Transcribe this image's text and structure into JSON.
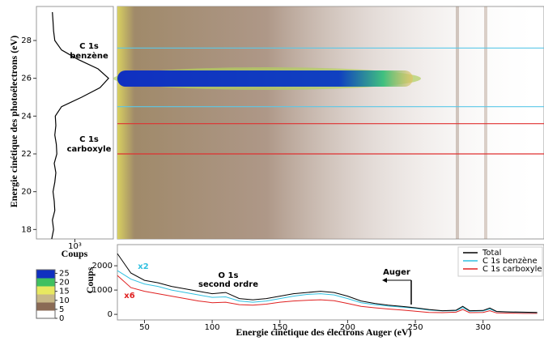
{
  "chart_data": [
    {
      "type": "profile",
      "ylabel": "Energie cinétique des photoélectrons (eV)",
      "xlabel": "Coups",
      "y": [
        17.5,
        18,
        18.5,
        19,
        19.5,
        20,
        20.5,
        21,
        21.5,
        22,
        22.5,
        23,
        23.5,
        24,
        24.5,
        25,
        25.5,
        26,
        26.5,
        27,
        27.5,
        28,
        28.5,
        29,
        29.5
      ],
      "values": [
        250,
        280,
        260,
        300,
        290,
        270,
        300,
        320,
        290,
        340,
        330,
        300,
        320,
        310,
        450,
        1500,
        4500,
        7500,
        4000,
        1200,
        450,
        300,
        280,
        270,
        260
      ],
      "color": "#000000",
      "xscale": "log",
      "xlim": [
        100,
        10000
      ],
      "xticks": [
        {
          "value": 1000,
          "label": "10³"
        }
      ],
      "ylim": [
        17.5,
        29.8
      ],
      "yticks": [
        18,
        20,
        22,
        24,
        26,
        28
      ],
      "annotations": [
        [
          "C 1s",
          "benzène"
        ],
        [
          "C 1s",
          "carboxyle"
        ]
      ]
    },
    {
      "type": "heatmap",
      "xlim": [
        30,
        345
      ],
      "ylim": [
        17.5,
        29.8
      ],
      "hlines": [
        {
          "value": 27.6,
          "color": "#5bc8e8"
        },
        {
          "value": 24.5,
          "color": "#5bc8e8"
        },
        {
          "value": 23.6,
          "color": "#e03030"
        },
        {
          "value": 22.0,
          "color": "#e03030"
        }
      ]
    },
    {
      "type": "colorbar",
      "ylim": [
        0,
        27
      ],
      "yticks": [
        0,
        5,
        10,
        15,
        20,
        25
      ],
      "colors": [
        "#ffffff",
        "#8a6a55",
        "#c8b888",
        "#e8e860",
        "#40c060",
        "#1030c0"
      ]
    },
    {
      "type": "line",
      "xlabel": "Energie cinétique des électrons Auger (eV)",
      "ylabel": "Coups",
      "x": [
        30,
        40,
        50,
        60,
        70,
        80,
        90,
        100,
        110,
        120,
        130,
        140,
        150,
        160,
        170,
        180,
        190,
        200,
        210,
        220,
        230,
        240,
        250,
        260,
        270,
        280,
        285,
        290,
        300,
        305,
        310,
        320,
        330,
        340
      ],
      "series": [
        {
          "name": "Total",
          "color": "#000000",
          "values": [
            2500,
            1700,
            1400,
            1300,
            1150,
            1050,
            950,
            850,
            900,
            650,
            600,
            650,
            750,
            850,
            900,
            950,
            900,
            750,
            550,
            450,
            380,
            330,
            270,
            200,
            150,
            170,
            330,
            150,
            160,
            260,
            120,
            100,
            90,
            80
          ]
        },
        {
          "name": "C 1s benzène",
          "color": "#30c0e0",
          "values": [
            1800,
            1450,
            1250,
            1150,
            1000,
            900,
            800,
            700,
            720,
            550,
            500,
            550,
            650,
            750,
            820,
            850,
            800,
            650,
            480,
            400,
            340,
            300,
            250,
            180,
            140,
            150,
            280,
            130,
            140,
            220,
            110,
            90,
            80,
            70
          ]
        },
        {
          "name": "C 1s carboxyle",
          "color": "#e02020",
          "values": [
            1600,
            1100,
            950,
            850,
            750,
            650,
            550,
            480,
            500,
            400,
            380,
            420,
            500,
            550,
            580,
            600,
            560,
            450,
            330,
            270,
            220,
            180,
            130,
            80,
            70,
            90,
            200,
            70,
            80,
            150,
            60,
            50,
            40,
            40
          ]
        }
      ],
      "xlim": [
        30,
        345
      ],
      "xticks": [
        50,
        100,
        150,
        200,
        250,
        300
      ],
      "ylim": [
        -230,
        2870
      ],
      "yticks": [
        0,
        1000,
        2000
      ],
      "legend": "upper right",
      "annotations": [
        {
          "lines": [
            "x2"
          ],
          "color": "#30c0e0"
        },
        {
          "lines": [
            "x6"
          ],
          "color": "#e02020"
        },
        {
          "lines": [
            "O 1s",
            "second ordre"
          ],
          "color": "#000000"
        },
        {
          "lines": [
            "Auger"
          ],
          "color": "#000000"
        }
      ]
    }
  ]
}
